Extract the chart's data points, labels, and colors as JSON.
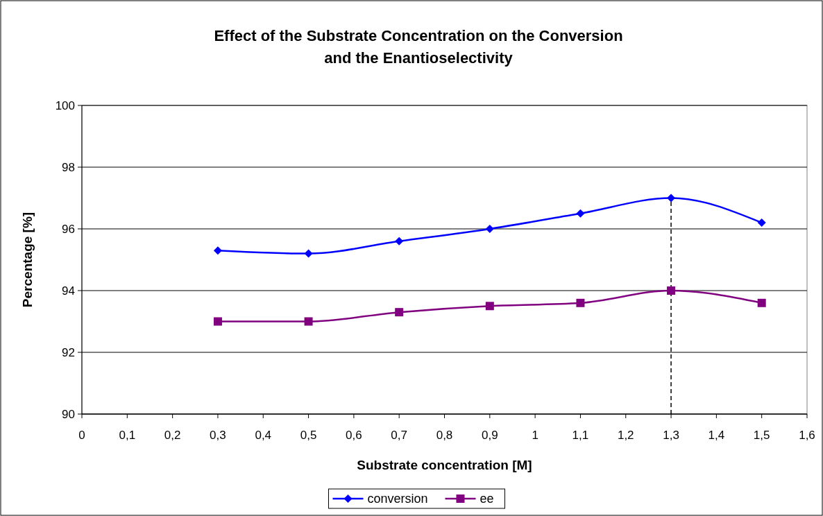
{
  "chart_data": {
    "type": "line",
    "title": "Effect of the Substrate Concentration on the Conversion\nand the Enantioselectivity",
    "xlabel": "Substrate concentration [M]",
    "ylabel": "Percentage [%]",
    "x": [
      0.3,
      0.5,
      0.7,
      0.9,
      1.1,
      1.3,
      1.5
    ],
    "series": [
      {
        "name": "conversion",
        "color": "#0000ff",
        "marker": "diamond",
        "values": [
          95.3,
          95.2,
          95.6,
          96.0,
          96.5,
          97.0,
          96.2
        ]
      },
      {
        "name": "ee",
        "color": "#800080",
        "marker": "square",
        "values": [
          93.0,
          93.0,
          93.3,
          93.5,
          93.6,
          94.0,
          93.6
        ]
      }
    ],
    "xlim": [
      0,
      1.6
    ],
    "xticks": [
      0,
      {
        "value": 0.1,
        "label": "0,1"
      },
      {
        "value": 0.2,
        "label": "0,2"
      },
      {
        "value": 0.3,
        "label": "0,3"
      },
      {
        "value": 0.4,
        "label": "0,4"
      },
      {
        "value": 0.5,
        "label": "0,5"
      },
      {
        "value": 0.6,
        "label": "0,6"
      },
      {
        "value": 0.7,
        "label": "0,7"
      },
      {
        "value": 0.8,
        "label": "0,8"
      },
      {
        "value": 0.9,
        "label": "0,9"
      },
      1,
      {
        "value": 1.1,
        "label": "1,1"
      },
      {
        "value": 1.2,
        "label": "1,2"
      },
      {
        "value": 1.3,
        "label": "1,3"
      },
      {
        "value": 1.4,
        "label": "1,4"
      },
      {
        "value": 1.5,
        "label": "1,5"
      },
      {
        "value": 1.6,
        "label": "1,6"
      }
    ],
    "ylim": [
      90,
      100
    ],
    "yticks": [
      90,
      92,
      94,
      96,
      98,
      100
    ],
    "ref_lines": [
      {
        "axis": "x",
        "value": 1.3,
        "color": "#000000",
        "line_style": "dashed"
      }
    ],
    "grid": "y",
    "legend": "bottom"
  }
}
